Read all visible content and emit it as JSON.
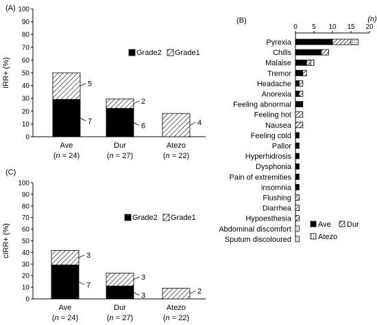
{
  "chart_data": [
    {
      "type": "bar",
      "panel": "(A)",
      "ylabel": "IRR+ (%)",
      "ylim": [
        0,
        100
      ],
      "yticks": [
        0,
        10,
        20,
        30,
        40,
        50,
        60,
        70,
        80,
        90,
        100
      ],
      "categories": [
        "Ave",
        "Dur",
        "Atezo"
      ],
      "category_ns": [
        "(n = 24)",
        "(n = 27)",
        "(n = 22)"
      ],
      "stacked": true,
      "series": [
        {
          "name": "Grade2",
          "values": [
            29.2,
            22.2,
            0
          ],
          "counts": [
            "7",
            "6",
            ""
          ]
        },
        {
          "name": "Grade1",
          "values": [
            20.8,
            7.4,
            18.2
          ],
          "counts": [
            "5",
            "2",
            "4"
          ]
        }
      ],
      "legend": "top-right"
    },
    {
      "type": "bar",
      "panel": "(B)",
      "orientation": "horizontal",
      "xlabel": "(n)",
      "xlim": [
        0,
        20
      ],
      "xticks": [
        0,
        5,
        10,
        15,
        20
      ],
      "stacked": true,
      "categories": [
        "Pyrexia",
        "Chills",
        "Malaise",
        "Tremor",
        "Headache",
        "Anorexia",
        "Feeling abnormal",
        "Feeling hot",
        "Nausea",
        "Feeling cold",
        "Pallor",
        "Hyperhidrosis",
        "Dysphonia",
        "Pain of extremities",
        "insomnia",
        "Flushing",
        "Diarrhea",
        "Hypoesthesia",
        "Abdominal discomfort",
        "Sputum discoloured"
      ],
      "series": [
        {
          "name": "Ave",
          "values": [
            10,
            7,
            3,
            2,
            1,
            1,
            2,
            0,
            0,
            1,
            1,
            1,
            1,
            1,
            1,
            0,
            0,
            0,
            0,
            0
          ]
        },
        {
          "name": "Dur",
          "values": [
            5,
            2,
            1,
            1,
            1,
            1,
            0,
            2,
            2,
            0,
            0,
            0,
            0,
            0,
            0,
            1,
            1,
            1,
            0,
            0
          ]
        },
        {
          "name": "Atezo",
          "values": [
            2,
            0,
            1,
            0,
            0,
            0,
            0,
            0,
            0,
            0,
            0,
            0,
            0,
            0,
            0,
            0,
            0,
            0,
            1,
            1
          ]
        }
      ],
      "legend": "bottom-right"
    },
    {
      "type": "bar",
      "panel": "(C)",
      "ylabel": "cIRR+ (%)",
      "ylim": [
        0,
        100
      ],
      "yticks": [
        0,
        10,
        20,
        30,
        40,
        50,
        60,
        70,
        80,
        90,
        100
      ],
      "categories": [
        "Ave",
        "Dur",
        "Atezo"
      ],
      "category_ns": [
        "(n = 24)",
        "(n = 27)",
        "(n = 22)"
      ],
      "stacked": true,
      "series": [
        {
          "name": "Grade2",
          "values": [
            29.2,
            11.1,
            0
          ],
          "counts": [
            "7",
            "3",
            ""
          ]
        },
        {
          "name": "Grade1",
          "values": [
            12.5,
            11.1,
            9.1
          ],
          "counts": [
            "3",
            "3",
            "2"
          ]
        }
      ],
      "legend": "top-right"
    }
  ]
}
